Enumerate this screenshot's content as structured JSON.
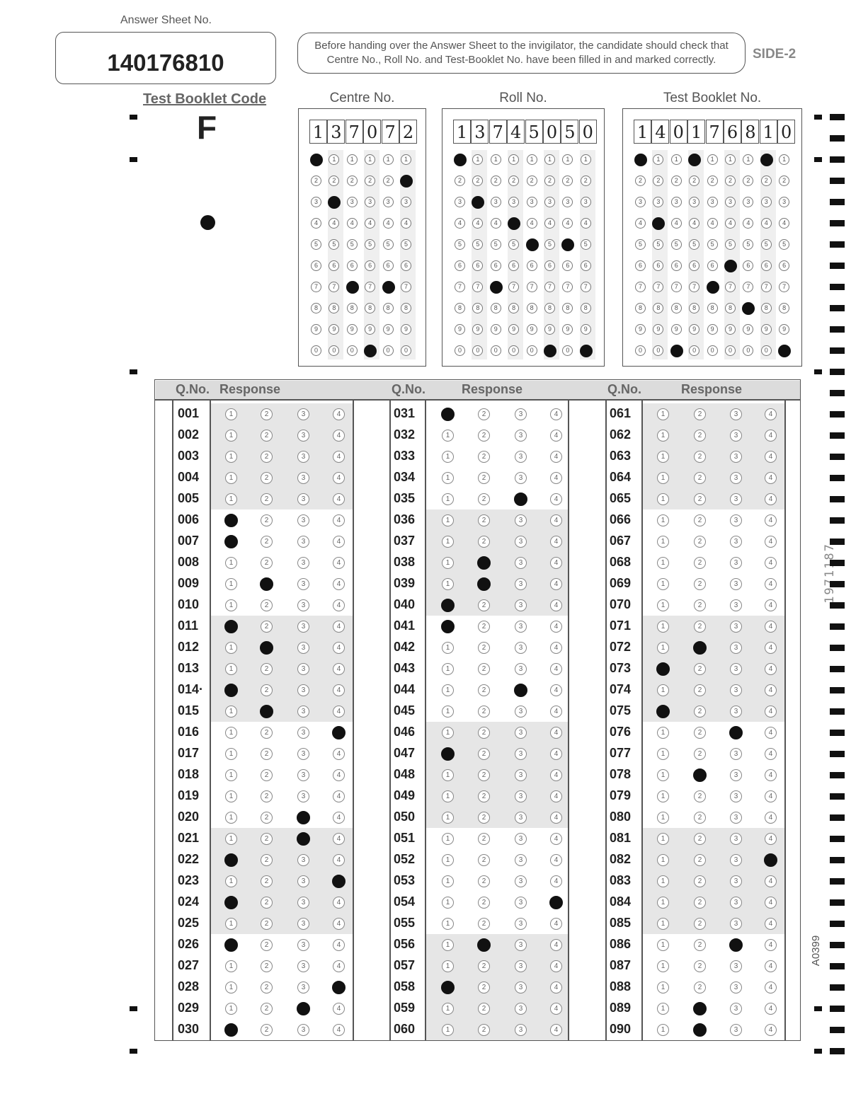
{
  "answer_sheet": {
    "label": "Answer Sheet No.",
    "number": "140176810"
  },
  "instruction": "Before handing over the Answer Sheet to the invigilator, the candidate should check that Centre No., Roll No. and Test-Booklet No. have been filled in and marked correctly.",
  "side": "SIDE-2",
  "test_booklet_code": {
    "label": "Test Booklet Code",
    "value": "F"
  },
  "centre_no": {
    "label": "Centre No.",
    "digits": [
      "1",
      "3",
      "7",
      "0",
      "7",
      "2"
    ]
  },
  "roll_no": {
    "label": "Roll No.",
    "digits": [
      "1",
      "3",
      "7",
      "4",
      "5",
      "0",
      "5",
      "0"
    ]
  },
  "test_booklet_no": {
    "label": "Test Booklet No.",
    "digits": [
      "1",
      "4",
      "0",
      "1",
      "7",
      "6",
      "8",
      "1",
      "0"
    ]
  },
  "bubble_digits": [
    "1",
    "2",
    "3",
    "4",
    "5",
    "6",
    "7",
    "8",
    "9",
    "0"
  ],
  "response_table": {
    "qno_header": "Q.No.",
    "response_header": "Response",
    "options": [
      "1",
      "2",
      "3",
      "4"
    ],
    "questions": [
      {
        "q": "001",
        "a": 0
      },
      {
        "q": "002",
        "a": 0
      },
      {
        "q": "003",
        "a": 0
      },
      {
        "q": "004",
        "a": 0
      },
      {
        "q": "005",
        "a": 0
      },
      {
        "q": "006",
        "a": 1
      },
      {
        "q": "007",
        "a": 1
      },
      {
        "q": "008",
        "a": 0
      },
      {
        "q": "009",
        "a": 2
      },
      {
        "q": "010",
        "a": 0
      },
      {
        "q": "011",
        "a": 1
      },
      {
        "q": "012",
        "a": 2
      },
      {
        "q": "013",
        "a": 0
      },
      {
        "q": "014·",
        "a": 1
      },
      {
        "q": "015",
        "a": 2
      },
      {
        "q": "016",
        "a": 4
      },
      {
        "q": "017",
        "a": 0
      },
      {
        "q": "018",
        "a": 0
      },
      {
        "q": "019",
        "a": 0
      },
      {
        "q": "020",
        "a": 3
      },
      {
        "q": "021",
        "a": 3
      },
      {
        "q": "022",
        "a": 1
      },
      {
        "q": "023",
        "a": 4
      },
      {
        "q": "024",
        "a": 1
      },
      {
        "q": "025",
        "a": 0
      },
      {
        "q": "026",
        "a": 1
      },
      {
        "q": "027",
        "a": 0
      },
      {
        "q": "028",
        "a": 4
      },
      {
        "q": "029",
        "a": 3
      },
      {
        "q": "030",
        "a": 1
      },
      {
        "q": "031",
        "a": 1
      },
      {
        "q": "032",
        "a": 0
      },
      {
        "q": "033",
        "a": 0
      },
      {
        "q": "034",
        "a": 0
      },
      {
        "q": "035",
        "a": 3
      },
      {
        "q": "036",
        "a": 0
      },
      {
        "q": "037",
        "a": 0
      },
      {
        "q": "038",
        "a": 2
      },
      {
        "q": "039",
        "a": 2
      },
      {
        "q": "040",
        "a": 1
      },
      {
        "q": "041",
        "a": 1
      },
      {
        "q": "042",
        "a": 0
      },
      {
        "q": "043",
        "a": 0
      },
      {
        "q": "044",
        "a": 3
      },
      {
        "q": "045",
        "a": 0
      },
      {
        "q": "046",
        "a": 0
      },
      {
        "q": "047",
        "a": 1
      },
      {
        "q": "048",
        "a": 0
      },
      {
        "q": "049",
        "a": 0
      },
      {
        "q": "050",
        "a": 0
      },
      {
        "q": "051",
        "a": 0
      },
      {
        "q": "052",
        "a": 0
      },
      {
        "q": "053",
        "a": 0
      },
      {
        "q": "054",
        "a": 4
      },
      {
        "q": "055",
        "a": 0
      },
      {
        "q": "056",
        "a": 2
      },
      {
        "q": "057",
        "a": 0
      },
      {
        "q": "058",
        "a": 1
      },
      {
        "q": "059",
        "a": 0
      },
      {
        "q": "060",
        "a": 0
      },
      {
        "q": "061",
        "a": 0
      },
      {
        "q": "062",
        "a": 0
      },
      {
        "q": "063",
        "a": 0
      },
      {
        "q": "064",
        "a": 0
      },
      {
        "q": "065",
        "a": 0
      },
      {
        "q": "066",
        "a": 0
      },
      {
        "q": "067",
        "a": 0
      },
      {
        "q": "068",
        "a": 0
      },
      {
        "q": "069",
        "a": 0
      },
      {
        "q": "070",
        "a": 0
      },
      {
        "q": "071",
        "a": 0
      },
      {
        "q": "072",
        "a": 2
      },
      {
        "q": "073",
        "a": 1
      },
      {
        "q": "074",
        "a": 0
      },
      {
        "q": "075",
        "a": 1
      },
      {
        "q": "076",
        "a": 3
      },
      {
        "q": "077",
        "a": 0
      },
      {
        "q": "078",
        "a": 2
      },
      {
        "q": "079",
        "a": 0
      },
      {
        "q": "080",
        "a": 0
      },
      {
        "q": "081",
        "a": 0
      },
      {
        "q": "082",
        "a": 4
      },
      {
        "q": "083",
        "a": 0
      },
      {
        "q": "084",
        "a": 0
      },
      {
        "q": "085",
        "a": 0
      },
      {
        "q": "086",
        "a": 3
      },
      {
        "q": "087",
        "a": 0
      },
      {
        "q": "088",
        "a": 0
      },
      {
        "q": "089",
        "a": 2
      },
      {
        "q": "090",
        "a": 2
      }
    ]
  },
  "side_codes": [
    "1971187",
    "A0399"
  ]
}
